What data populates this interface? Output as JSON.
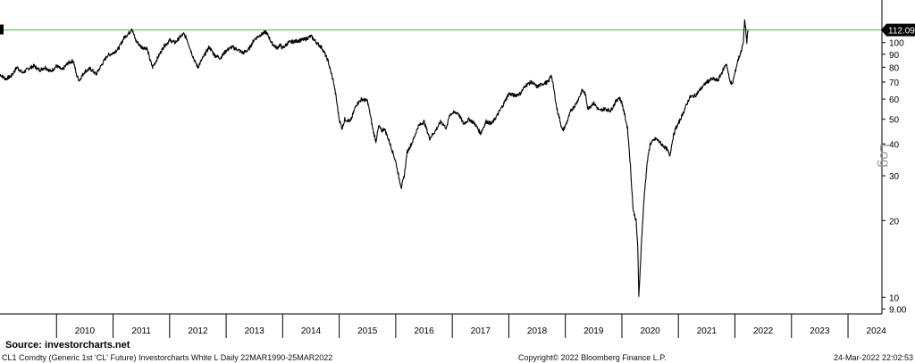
{
  "chart_data": {
    "type": "line",
    "title": "",
    "xlabel": "",
    "ylabel": "",
    "scale": "log",
    "ylim": [
      8.6,
      140
    ],
    "y_ticks": [
      9,
      10,
      20,
      30,
      40,
      50,
      60,
      70,
      80,
      90,
      100
    ],
    "y_tick_labels": [
      "9.00",
      "10",
      "20",
      "30",
      "40",
      "50",
      "60",
      "70",
      "80",
      "90",
      "100"
    ],
    "x_years": [
      "2010",
      "2011",
      "2012",
      "2013",
      "2014",
      "2015",
      "2016",
      "2017",
      "2018",
      "2019",
      "2020",
      "2021",
      "2022",
      "2023",
      "2024"
    ],
    "xlim": [
      2009.0,
      2024.6
    ],
    "grid": false,
    "reference_line": {
      "value": 112.09,
      "label": "112.09",
      "color": "#33cc33"
    },
    "series": [
      {
        "color": "#000000",
        "points": [
          [
            2009.0,
            75
          ],
          [
            2009.1,
            72
          ],
          [
            2009.2,
            74
          ],
          [
            2009.3,
            80
          ],
          [
            2009.4,
            76
          ],
          [
            2009.5,
            79
          ],
          [
            2009.6,
            81
          ],
          [
            2009.7,
            78
          ],
          [
            2009.8,
            80
          ],
          [
            2009.9,
            77
          ],
          [
            2010.0,
            81
          ],
          [
            2010.1,
            78
          ],
          [
            2010.2,
            83
          ],
          [
            2010.3,
            85
          ],
          [
            2010.35,
            75
          ],
          [
            2010.4,
            71
          ],
          [
            2010.5,
            77
          ],
          [
            2010.6,
            79
          ],
          [
            2010.7,
            75
          ],
          [
            2010.8,
            82
          ],
          [
            2010.9,
            89
          ],
          [
            2011.0,
            91
          ],
          [
            2011.1,
            95
          ],
          [
            2011.2,
            105
          ],
          [
            2011.3,
            110
          ],
          [
            2011.33,
            114
          ],
          [
            2011.4,
            102
          ],
          [
            2011.5,
            96
          ],
          [
            2011.6,
            95
          ],
          [
            2011.65,
            86
          ],
          [
            2011.7,
            80
          ],
          [
            2011.8,
            88
          ],
          [
            2011.9,
            97
          ],
          [
            2011.95,
            99
          ],
          [
            2012.0,
            102
          ],
          [
            2012.1,
            100
          ],
          [
            2012.2,
            106
          ],
          [
            2012.25,
            108
          ],
          [
            2012.3,
            104
          ],
          [
            2012.4,
            90
          ],
          [
            2012.45,
            84
          ],
          [
            2012.5,
            80
          ],
          [
            2012.6,
            88
          ],
          [
            2012.7,
            96
          ],
          [
            2012.8,
            89
          ],
          [
            2012.9,
            87
          ],
          [
            2013.0,
            93
          ],
          [
            2013.1,
            96
          ],
          [
            2013.2,
            94
          ],
          [
            2013.3,
            91
          ],
          [
            2013.4,
            94
          ],
          [
            2013.5,
            103
          ],
          [
            2013.6,
            107
          ],
          [
            2013.7,
            110
          ],
          [
            2013.75,
            106
          ],
          [
            2013.8,
            100
          ],
          [
            2013.9,
            95
          ],
          [
            2013.95,
            98
          ],
          [
            2014.0,
            95
          ],
          [
            2014.1,
            100
          ],
          [
            2014.2,
            101
          ],
          [
            2014.3,
            102
          ],
          [
            2014.4,
            103
          ],
          [
            2014.5,
            106
          ],
          [
            2014.6,
            100
          ],
          [
            2014.7,
            95
          ],
          [
            2014.8,
            85
          ],
          [
            2014.9,
            70
          ],
          [
            2014.95,
            60
          ],
          [
            2015.0,
            50
          ],
          [
            2015.05,
            46
          ],
          [
            2015.1,
            50
          ],
          [
            2015.2,
            49
          ],
          [
            2015.3,
            57
          ],
          [
            2015.4,
            60
          ],
          [
            2015.5,
            59
          ],
          [
            2015.55,
            52
          ],
          [
            2015.6,
            45
          ],
          [
            2015.65,
            41
          ],
          [
            2015.7,
            47
          ],
          [
            2015.75,
            45
          ],
          [
            2015.8,
            46
          ],
          [
            2015.9,
            40
          ],
          [
            2015.95,
            37
          ],
          [
            2016.0,
            34
          ],
          [
            2016.05,
            30
          ],
          [
            2016.1,
            27
          ],
          [
            2016.15,
            30
          ],
          [
            2016.2,
            37
          ],
          [
            2016.3,
            41
          ],
          [
            2016.4,
            47
          ],
          [
            2016.5,
            49
          ],
          [
            2016.6,
            42
          ],
          [
            2016.7,
            45
          ],
          [
            2016.8,
            49
          ],
          [
            2016.9,
            46
          ],
          [
            2016.95,
            52
          ],
          [
            2017.0,
            53
          ],
          [
            2017.1,
            53
          ],
          [
            2017.2,
            48
          ],
          [
            2017.3,
            50
          ],
          [
            2017.4,
            48
          ],
          [
            2017.5,
            44
          ],
          [
            2017.6,
            49
          ],
          [
            2017.7,
            48
          ],
          [
            2017.8,
            52
          ],
          [
            2017.9,
            57
          ],
          [
            2017.95,
            60
          ],
          [
            2018.0,
            63
          ],
          [
            2018.1,
            62
          ],
          [
            2018.2,
            63
          ],
          [
            2018.3,
            68
          ],
          [
            2018.4,
            70
          ],
          [
            2018.5,
            67
          ],
          [
            2018.6,
            69
          ],
          [
            2018.7,
            70
          ],
          [
            2018.75,
            75
          ],
          [
            2018.8,
            65
          ],
          [
            2018.85,
            55
          ],
          [
            2018.9,
            50
          ],
          [
            2018.95,
            45
          ],
          [
            2019.0,
            47
          ],
          [
            2019.1,
            54
          ],
          [
            2019.2,
            58
          ],
          [
            2019.3,
            65
          ],
          [
            2019.35,
            63
          ],
          [
            2019.4,
            55
          ],
          [
            2019.5,
            58
          ],
          [
            2019.6,
            54
          ],
          [
            2019.7,
            55
          ],
          [
            2019.8,
            54
          ],
          [
            2019.9,
            59
          ],
          [
            2019.95,
            61
          ],
          [
            2020.0,
            58
          ],
          [
            2020.05,
            52
          ],
          [
            2020.1,
            46
          ],
          [
            2020.15,
            33
          ],
          [
            2020.2,
            22
          ],
          [
            2020.25,
            20
          ],
          [
            2020.28,
            16
          ],
          [
            2020.3,
            10
          ],
          [
            2020.35,
            17
          ],
          [
            2020.4,
            26
          ],
          [
            2020.45,
            34
          ],
          [
            2020.5,
            40
          ],
          [
            2020.6,
            42
          ],
          [
            2020.7,
            40
          ],
          [
            2020.8,
            38
          ],
          [
            2020.85,
            36
          ],
          [
            2020.9,
            42
          ],
          [
            2020.95,
            46
          ],
          [
            2021.0,
            48
          ],
          [
            2021.1,
            54
          ],
          [
            2021.2,
            61
          ],
          [
            2021.3,
            62
          ],
          [
            2021.4,
            66
          ],
          [
            2021.5,
            70
          ],
          [
            2021.6,
            72
          ],
          [
            2021.7,
            71
          ],
          [
            2021.8,
            79
          ],
          [
            2021.85,
            83
          ],
          [
            2021.9,
            72
          ],
          [
            2021.95,
            68
          ],
          [
            2022.0,
            76
          ],
          [
            2022.05,
            85
          ],
          [
            2022.1,
            91
          ],
          [
            2022.15,
            100
          ],
          [
            2022.17,
            123
          ],
          [
            2022.19,
            114
          ],
          [
            2022.21,
            99
          ],
          [
            2022.23,
            112
          ]
        ]
      }
    ]
  },
  "axis_extra": {
    "log_label": "Log"
  },
  "annotations": {
    "source": "Source:  investorcharts.net"
  },
  "footer": {
    "left": "CL1 Comdty (Generic 1st 'CL' Future) Investorcharts White L  Daily 22MAR1990-25MAR2022",
    "center": "Copyright© 2022 Bloomberg Finance L.P.",
    "right": "24-Mar-2022 22:02:53"
  }
}
